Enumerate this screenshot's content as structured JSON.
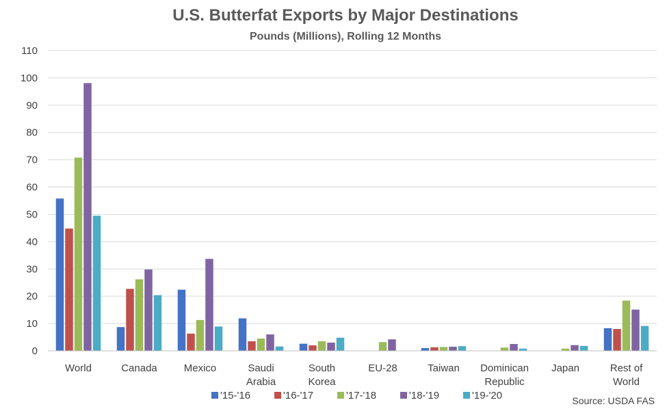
{
  "chart_data": {
    "type": "bar",
    "title": "U.S. Butterfat Exports by Major Destinations",
    "subtitle": "Pounds (Millions), Rolling 12 Months",
    "xlabel": "",
    "ylabel": "",
    "ylim": [
      0,
      110
    ],
    "yticks": [
      0,
      10,
      20,
      30,
      40,
      50,
      60,
      70,
      80,
      90,
      100,
      110
    ],
    "grid": true,
    "legend_position": "bottom",
    "categories": [
      [
        "World"
      ],
      [
        "Canada"
      ],
      [
        "Mexico"
      ],
      [
        "Saudi",
        "Arabia"
      ],
      [
        "South",
        "Korea"
      ],
      [
        "EU-28"
      ],
      [
        "Taiwan"
      ],
      [
        "Dominican",
        "Republic"
      ],
      [
        "Japan"
      ],
      [
        "Rest of",
        "World"
      ]
    ],
    "series": [
      {
        "name": "'15-'16",
        "color": "#4472c4",
        "values": [
          55.8,
          8.7,
          22.4,
          11.9,
          2.6,
          0.0,
          1.0,
          0.0,
          0.0,
          8.3
        ]
      },
      {
        "name": "'16-'17",
        "color": "#c0504d",
        "values": [
          44.8,
          22.7,
          6.3,
          3.5,
          2.0,
          0.0,
          1.3,
          0.0,
          0.0,
          8.0
        ]
      },
      {
        "name": "'17-'18",
        "color": "#9bbb59",
        "values": [
          70.8,
          26.2,
          11.3,
          4.5,
          3.5,
          3.2,
          1.4,
          1.2,
          0.8,
          18.4
        ]
      },
      {
        "name": "'18-'19",
        "color": "#8064a2",
        "values": [
          98.1,
          29.8,
          33.7,
          6.0,
          3.0,
          4.2,
          1.5,
          2.5,
          2.1,
          15.1
        ]
      },
      {
        "name": "'19-'20",
        "color": "#4bacc6",
        "values": [
          49.5,
          20.4,
          8.9,
          1.6,
          4.8,
          0.0,
          1.7,
          0.8,
          1.8,
          9.1
        ]
      }
    ],
    "source": "Source: USDA FAS"
  }
}
